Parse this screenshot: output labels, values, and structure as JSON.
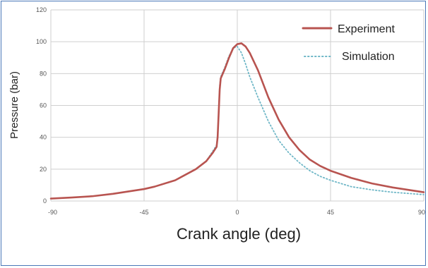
{
  "chart_data": {
    "type": "line",
    "title": "",
    "xlabel": "Crank angle (deg)",
    "ylabel": "Pressure (bar)",
    "xlim": [
      -90,
      90
    ],
    "ylim": [
      0,
      120
    ],
    "x_ticks": [
      -90,
      -45,
      0,
      45,
      90
    ],
    "y_ticks": [
      0,
      20,
      40,
      60,
      80,
      100,
      120
    ],
    "x_tick_labels": [
      "-90",
      "-45",
      "0",
      "45",
      "90"
    ],
    "y_tick_labels": [
      "0",
      "20",
      "40",
      "60",
      "80",
      "100",
      "120"
    ],
    "grid": true,
    "legend_position": "top-right",
    "series": [
      {
        "name": "Experiment",
        "style": "solid",
        "color": "#b85450",
        "points": [
          [
            -90,
            1.5
          ],
          [
            -80,
            2.2
          ],
          [
            -70,
            3.0
          ],
          [
            -60,
            4.5
          ],
          [
            -50,
            6.5
          ],
          [
            -45,
            7.5
          ],
          [
            -40,
            9.0
          ],
          [
            -30,
            13.0
          ],
          [
            -20,
            20.0
          ],
          [
            -15,
            25.0
          ],
          [
            -12,
            30.0
          ],
          [
            -10,
            34.0
          ],
          [
            -9.5,
            40.0
          ],
          [
            -9,
            55.0
          ],
          [
            -8.5,
            70.0
          ],
          [
            -8,
            77.0
          ],
          [
            -6,
            83.0
          ],
          [
            -4,
            90.0
          ],
          [
            -2,
            96.0
          ],
          [
            0,
            98.5
          ],
          [
            2,
            99.0
          ],
          [
            4,
            97.0
          ],
          [
            6,
            93.0
          ],
          [
            10,
            82.0
          ],
          [
            15,
            65.0
          ],
          [
            20,
            51.0
          ],
          [
            25,
            40.0
          ],
          [
            30,
            32.0
          ],
          [
            35,
            26.0
          ],
          [
            40,
            22.0
          ],
          [
            45,
            19.0
          ],
          [
            55,
            14.5
          ],
          [
            65,
            11.0
          ],
          [
            75,
            8.5
          ],
          [
            85,
            6.5
          ],
          [
            90,
            5.5
          ]
        ]
      },
      {
        "name": "Simulation",
        "style": "dotted",
        "color": "#6fb7c7",
        "points": [
          [
            -90,
            1.5
          ],
          [
            -80,
            2.2
          ],
          [
            -70,
            3.0
          ],
          [
            -60,
            4.5
          ],
          [
            -50,
            6.5
          ],
          [
            -45,
            7.5
          ],
          [
            -40,
            9.0
          ],
          [
            -30,
            13.0
          ],
          [
            -20,
            20.0
          ],
          [
            -15,
            25.0
          ],
          [
            -12,
            31.0
          ],
          [
            -10,
            35.0
          ],
          [
            -9.5,
            42.0
          ],
          [
            -9,
            56.0
          ],
          [
            -8.5,
            72.0
          ],
          [
            -8,
            78.0
          ],
          [
            -6,
            84.0
          ],
          [
            -4,
            91.0
          ],
          [
            -2,
            96.0
          ],
          [
            0,
            97.0
          ],
          [
            2,
            93.0
          ],
          [
            4,
            86.0
          ],
          [
            6,
            78.0
          ],
          [
            10,
            65.0
          ],
          [
            15,
            50.0
          ],
          [
            20,
            38.0
          ],
          [
            25,
            30.0
          ],
          [
            30,
            24.0
          ],
          [
            35,
            19.0
          ],
          [
            40,
            15.5
          ],
          [
            45,
            13.0
          ],
          [
            55,
            9.0
          ],
          [
            65,
            7.0
          ],
          [
            75,
            5.5
          ],
          [
            85,
            4.5
          ],
          [
            90,
            4.0
          ]
        ]
      }
    ]
  }
}
